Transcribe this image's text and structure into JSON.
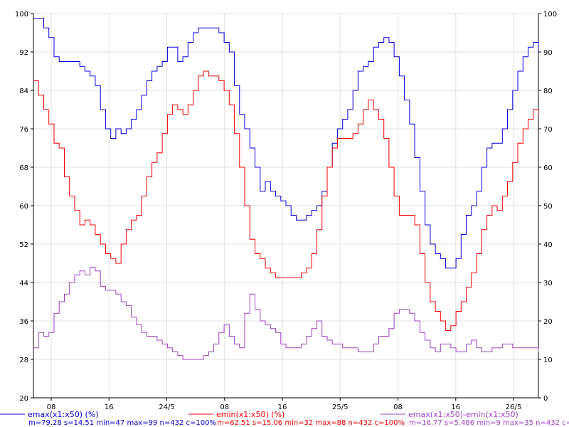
{
  "chart_data": {
    "type": "line",
    "grid": true,
    "x_ticks": [
      "08",
      "16",
      "24/5",
      "08",
      "16",
      "25/5",
      "08",
      "16",
      "26/5"
    ],
    "y_left": {
      "range": [
        20,
        100
      ],
      "ticks": [
        20,
        28,
        36,
        44,
        52,
        60,
        68,
        76,
        84,
        92,
        100
      ]
    },
    "y_right": {
      "range": [
        0,
        100
      ],
      "ticks": [
        0,
        10,
        20,
        30,
        40,
        50,
        60,
        70,
        80,
        90,
        100
      ]
    },
    "series": [
      {
        "name": "emax(x1:x50) (%)",
        "axis": "left",
        "color": "#0000dd",
        "stats": "m=79.28 s=14.51 min=47 max=99 n=432 c=100%",
        "values": [
          99,
          99,
          97,
          95,
          91,
          90,
          90,
          90,
          90,
          89,
          88,
          87,
          85,
          80,
          76,
          74,
          76,
          75,
          76,
          78,
          80,
          83,
          86,
          88,
          89,
          90,
          93,
          93,
          90,
          91,
          94,
          96,
          97,
          97,
          97,
          97,
          96,
          94,
          92,
          85,
          79,
          76,
          72,
          68,
          63,
          65,
          63,
          62,
          61,
          60,
          58,
          57,
          57,
          58,
          59,
          60,
          63,
          68,
          73,
          76,
          78,
          80,
          84,
          88,
          89,
          90,
          93,
          94,
          95,
          94,
          91,
          87,
          82,
          77,
          70,
          63,
          56,
          52,
          50,
          49,
          47,
          47,
          49,
          54,
          58,
          60,
          63,
          68,
          72,
          73,
          73,
          76,
          80,
          84,
          88,
          91,
          93,
          94,
          92
        ]
      },
      {
        "name": "emin(x1:x50) (%)",
        "axis": "left",
        "color": "#ee0000",
        "stats": "m=62.51 s=15.06 min=32 max=88 n=432 c=100%",
        "values": [
          86,
          83,
          80,
          77,
          73,
          72,
          66,
          62,
          59,
          56,
          57,
          56,
          54,
          52,
          50,
          49,
          48,
          52,
          55,
          57,
          58,
          62,
          66,
          69,
          71,
          75,
          79,
          81,
          80,
          79,
          81,
          84,
          87,
          88,
          87,
          87,
          86,
          84,
          81,
          75,
          68,
          60,
          53,
          50,
          49,
          47,
          46,
          45,
          45,
          45,
          45,
          45,
          46,
          47,
          50,
          55,
          62,
          68,
          72,
          74,
          74,
          74,
          75,
          77,
          80,
          82,
          80,
          78,
          74,
          68,
          62,
          58,
          58,
          58,
          56,
          50,
          44,
          40,
          38,
          36,
          34,
          35,
          38,
          40,
          43,
          46,
          50,
          55,
          58,
          60,
          59,
          62,
          65,
          69,
          73,
          76,
          78,
          80,
          79
        ]
      },
      {
        "name": "emax(x1:x50)-emin(x1:x50)",
        "axis": "right",
        "color": "#a040c8",
        "stats": "m=16.77 s=5.486 min=9 max=35 n=432 c=100%",
        "values": [
          13,
          17,
          16,
          17,
          22,
          25,
          27,
          30,
          32,
          33,
          32,
          34,
          33,
          29,
          28,
          28,
          27,
          25,
          24,
          21,
          19,
          17,
          16,
          16,
          15,
          14,
          13,
          12,
          11,
          10,
          10,
          10,
          10,
          11,
          12,
          14,
          17,
          19,
          16,
          14,
          13,
          22,
          27,
          23,
          20,
          19,
          18,
          17,
          14,
          13,
          13,
          13,
          14,
          16,
          18,
          20,
          16,
          15,
          14,
          14,
          13,
          13,
          13,
          12,
          12,
          12,
          14,
          16,
          16,
          18,
          22,
          23,
          23,
          22,
          20,
          17,
          15,
          13,
          12,
          14,
          14,
          13,
          12,
          12,
          14,
          15,
          13,
          12,
          12,
          13,
          13,
          14,
          14,
          13,
          13,
          13,
          13,
          13,
          12
        ]
      }
    ]
  }
}
